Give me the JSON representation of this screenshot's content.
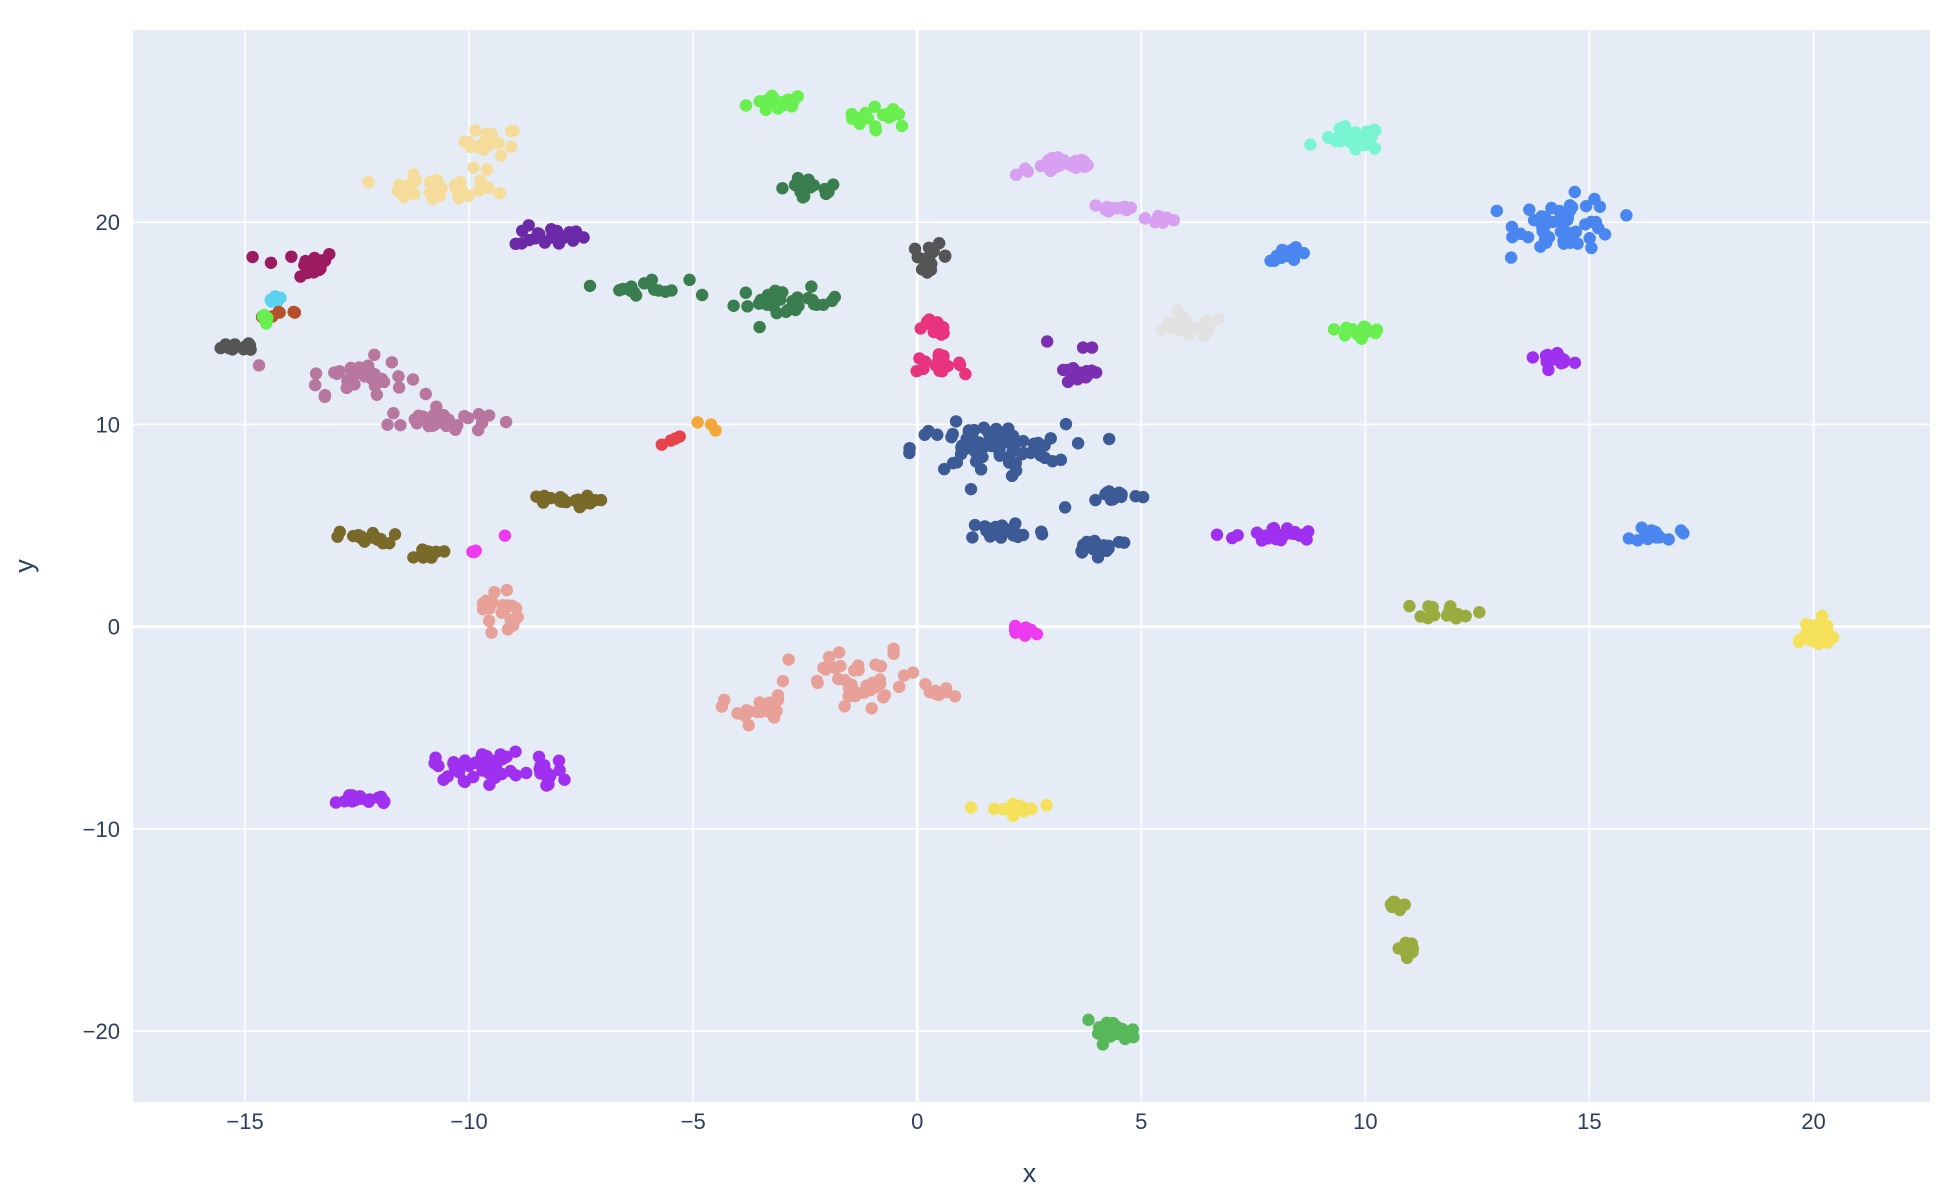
{
  "chart_data": {
    "type": "scatter",
    "title": "",
    "xlabel": "x",
    "ylabel": "y",
    "xlim": [
      -17.5,
      22.6
    ],
    "ylim": [
      -23.5,
      29.5
    ],
    "xticks": [
      -15,
      -10,
      -5,
      0,
      5,
      10,
      15,
      20
    ],
    "yticks": [
      -20,
      -10,
      0,
      10,
      20
    ],
    "xtick_labels": [
      "−15",
      "−10",
      "−5",
      "0",
      "5",
      "10",
      "15",
      "20"
    ],
    "ytick_labels": [
      "−20",
      "−10",
      "0",
      "10",
      "20"
    ],
    "grid": true,
    "legend": "none",
    "colors": {
      "plot_background": "#e5ecf6",
      "grid": "#ffffff",
      "text": "#2a3f5f"
    },
    "clusters": [
      {
        "color": "#69f050",
        "cx": -3.1,
        "cy": 25.9,
        "sx": 0.35,
        "sy": 0.25,
        "n": 18
      },
      {
        "color": "#69f050",
        "cx": -0.8,
        "cy": 25.2,
        "sx": 0.4,
        "sy": 0.25,
        "n": 16
      },
      {
        "color": "#f5dc9b",
        "cx": -9.5,
        "cy": 24.0,
        "sx": 0.3,
        "sy": 0.35,
        "n": 18
      },
      {
        "color": "#f5dc9b",
        "cx": -10.8,
        "cy": 21.6,
        "sx": 0.7,
        "sy": 0.3,
        "n": 28
      },
      {
        "color": "#3a7d4f",
        "cx": -2.4,
        "cy": 21.6,
        "sx": 0.35,
        "sy": 0.3,
        "n": 18
      },
      {
        "color": "#6a2aa8",
        "cx": -8.2,
        "cy": 19.3,
        "sx": 0.4,
        "sy": 0.25,
        "n": 22
      },
      {
        "color": "#9c1a5f",
        "cx": -13.8,
        "cy": 17.9,
        "sx": 0.45,
        "sy": 0.35,
        "n": 18
      },
      {
        "color": "#5ad2f0",
        "cx": -14.3,
        "cy": 16.2,
        "sx": 0.12,
        "sy": 0.12,
        "n": 6
      },
      {
        "color": "#b5502a",
        "cx": -14.3,
        "cy": 15.5,
        "sx": 0.35,
        "sy": 0.15,
        "n": 6
      },
      {
        "color": "#69f050",
        "cx": -14.5,
        "cy": 15.1,
        "sx": 0.1,
        "sy": 0.3,
        "n": 5
      },
      {
        "color": "#555555",
        "cx": -15.0,
        "cy": 13.9,
        "sx": 0.25,
        "sy": 0.15,
        "n": 10
      },
      {
        "color": "#b7779f",
        "cx": -12.6,
        "cy": 12.4,
        "sx": 0.6,
        "sy": 0.45,
        "n": 34
      },
      {
        "color": "#b7779f",
        "cx": -10.7,
        "cy": 10.2,
        "sx": 0.55,
        "sy": 0.3,
        "n": 32
      },
      {
        "color": "#3a7d4f",
        "cx": -6.0,
        "cy": 16.8,
        "sx": 0.45,
        "sy": 0.2,
        "n": 16
      },
      {
        "color": "#3a7d4f",
        "cx": -2.9,
        "cy": 16.0,
        "sx": 0.6,
        "sy": 0.35,
        "n": 30
      },
      {
        "color": "#555555",
        "cx": 0.3,
        "cy": 18.3,
        "sx": 0.2,
        "sy": 0.3,
        "n": 16
      },
      {
        "color": "#e8347f",
        "cx": 0.4,
        "cy": 14.8,
        "sx": 0.2,
        "sy": 0.2,
        "n": 12
      },
      {
        "color": "#e8347f",
        "cx": 0.4,
        "cy": 13.0,
        "sx": 0.3,
        "sy": 0.2,
        "n": 18
      },
      {
        "color": "#d8a0f0",
        "cx": 3.2,
        "cy": 22.8,
        "sx": 0.5,
        "sy": 0.25,
        "n": 22
      },
      {
        "color": "#d8a0f0",
        "cx": 4.4,
        "cy": 20.7,
        "sx": 0.3,
        "sy": 0.15,
        "n": 10
      },
      {
        "color": "#d8a0f0",
        "cx": 5.5,
        "cy": 20.2,
        "sx": 0.2,
        "sy": 0.2,
        "n": 10
      },
      {
        "color": "#e2e2e2",
        "cx": 6.0,
        "cy": 14.8,
        "sx": 0.45,
        "sy": 0.25,
        "n": 22
      },
      {
        "color": "#7a2fb0",
        "cx": 3.6,
        "cy": 12.4,
        "sx": 0.25,
        "sy": 0.2,
        "n": 18
      },
      {
        "color": "#7af5d2",
        "cx": 9.7,
        "cy": 24.1,
        "sx": 0.35,
        "sy": 0.3,
        "n": 30
      },
      {
        "color": "#4a86f0",
        "cx": 14.5,
        "cy": 19.9,
        "sx": 0.55,
        "sy": 0.65,
        "n": 55
      },
      {
        "color": "#4a86f0",
        "cx": 8.3,
        "cy": 18.4,
        "sx": 0.25,
        "sy": 0.15,
        "n": 16
      },
      {
        "color": "#69f050",
        "cx": 9.9,
        "cy": 14.6,
        "sx": 0.25,
        "sy": 0.15,
        "n": 14
      },
      {
        "color": "#a030f0",
        "cx": 14.2,
        "cy": 13.3,
        "sx": 0.2,
        "sy": 0.15,
        "n": 14
      },
      {
        "color": "#3b5a96",
        "cx": 1.6,
        "cy": 8.8,
        "sx": 0.85,
        "sy": 0.6,
        "n": 75
      },
      {
        "color": "#3b5a96",
        "cx": 2.0,
        "cy": 4.7,
        "sx": 0.45,
        "sy": 0.3,
        "n": 28
      },
      {
        "color": "#3b5a96",
        "cx": 4.4,
        "cy": 6.5,
        "sx": 0.3,
        "sy": 0.15,
        "n": 14
      },
      {
        "color": "#3b5a96",
        "cx": 4.1,
        "cy": 4.0,
        "sx": 0.35,
        "sy": 0.2,
        "n": 20
      },
      {
        "color": "#a030f0",
        "cx": 8.0,
        "cy": 4.5,
        "sx": 0.45,
        "sy": 0.2,
        "n": 28
      },
      {
        "color": "#4a86f0",
        "cx": 16.5,
        "cy": 4.6,
        "sx": 0.25,
        "sy": 0.2,
        "n": 14
      },
      {
        "color": "#9aac3f",
        "cx": 11.9,
        "cy": 0.8,
        "sx": 0.35,
        "sy": 0.2,
        "n": 16
      },
      {
        "color": "#f5e05a",
        "cx": 20.0,
        "cy": -0.4,
        "sx": 0.3,
        "sy": 0.4,
        "n": 28
      },
      {
        "color": "#7a6a2a",
        "cx": -8.0,
        "cy": 6.2,
        "sx": 0.4,
        "sy": 0.15,
        "n": 20
      },
      {
        "color": "#7a6a2a",
        "cx": -12.3,
        "cy": 4.4,
        "sx": 0.35,
        "sy": 0.15,
        "n": 16
      },
      {
        "color": "#7a6a2a",
        "cx": -11.0,
        "cy": 3.6,
        "sx": 0.2,
        "sy": 0.12,
        "n": 10
      },
      {
        "color": "#ee3aef",
        "cx": -9.9,
        "cy": 3.7,
        "sx": 0.05,
        "sy": 0.1,
        "n": 3
      },
      {
        "color": "#e8a198",
        "cx": -9.3,
        "cy": 0.9,
        "sx": 0.2,
        "sy": 0.65,
        "n": 20
      },
      {
        "color": "#e8a198",
        "cx": -3.6,
        "cy": -4.1,
        "sx": 0.35,
        "sy": 0.35,
        "n": 18
      },
      {
        "color": "#e8a198",
        "cx": -1.2,
        "cy": -2.8,
        "sx": 0.8,
        "sy": 0.8,
        "n": 42
      },
      {
        "color": "#e8a198",
        "cx": 0.5,
        "cy": -3.3,
        "sx": 0.15,
        "sy": 0.15,
        "n": 8
      },
      {
        "color": "#ee3aef",
        "cx": 2.4,
        "cy": -0.2,
        "sx": 0.25,
        "sy": 0.15,
        "n": 14
      },
      {
        "color": "#a030f0",
        "cx": -12.3,
        "cy": -8.5,
        "sx": 0.3,
        "sy": 0.15,
        "n": 14
      },
      {
        "color": "#a030f0",
        "cx": -9.8,
        "cy": -6.9,
        "sx": 0.5,
        "sy": 0.35,
        "n": 40
      },
      {
        "color": "#a030f0",
        "cx": -8.3,
        "cy": -7.2,
        "sx": 0.2,
        "sy": 0.35,
        "n": 14
      },
      {
        "color": "#f5e05a",
        "cx": 2.1,
        "cy": -9.0,
        "sx": 0.3,
        "sy": 0.15,
        "n": 16
      },
      {
        "color": "#9aac3f",
        "cx": 10.7,
        "cy": -13.7,
        "sx": 0.2,
        "sy": 0.15,
        "n": 10
      },
      {
        "color": "#9aac3f",
        "cx": 11.0,
        "cy": -15.9,
        "sx": 0.15,
        "sy": 0.15,
        "n": 8
      },
      {
        "color": "#57b85a",
        "cx": 4.3,
        "cy": -20.0,
        "sx": 0.3,
        "sy": 0.25,
        "n": 20
      }
    ],
    "extra_points": [
      {
        "color": "#e8434a",
        "x": -5.7,
        "y": 9.0
      },
      {
        "color": "#e8434a",
        "x": -5.5,
        "y": 9.2
      },
      {
        "color": "#e8434a",
        "x": -5.4,
        "y": 9.3
      },
      {
        "color": "#e8434a",
        "x": -5.3,
        "y": 9.4
      },
      {
        "color": "#f5a83a",
        "x": -4.9,
        "y": 10.1
      },
      {
        "color": "#f5a83a",
        "x": -4.6,
        "y": 10.0
      },
      {
        "color": "#f5a83a",
        "x": -4.5,
        "y": 9.7
      },
      {
        "color": "#3a7d4f",
        "x": -4.8,
        "y": 16.4
      },
      {
        "color": "#7a2fb0",
        "x": 2.9,
        "y": 14.1
      },
      {
        "color": "#7a2fb0",
        "x": 3.7,
        "y": 13.8
      },
      {
        "color": "#7a2fb0",
        "x": 3.9,
        "y": 13.8
      },
      {
        "color": "#3b5a96",
        "x": 3.3,
        "y": 5.9
      },
      {
        "color": "#3b5a96",
        "x": 1.2,
        "y": 6.8
      },
      {
        "color": "#ee3aef",
        "x": -9.2,
        "y": 4.5
      },
      {
        "color": "#b7779f",
        "x": -12.1,
        "y": 11.9
      },
      {
        "color": "#b7779f",
        "x": -11.9,
        "y": 12.1
      },
      {
        "color": "#f5dc9b",
        "x": -9.9,
        "y": 22.7
      },
      {
        "color": "#f5dc9b",
        "x": -9.6,
        "y": 22.6
      },
      {
        "color": "#69f050",
        "x": 9.3,
        "y": 14.7
      },
      {
        "color": "#e8a198",
        "x": -9.5,
        "y": -0.3
      }
    ]
  }
}
